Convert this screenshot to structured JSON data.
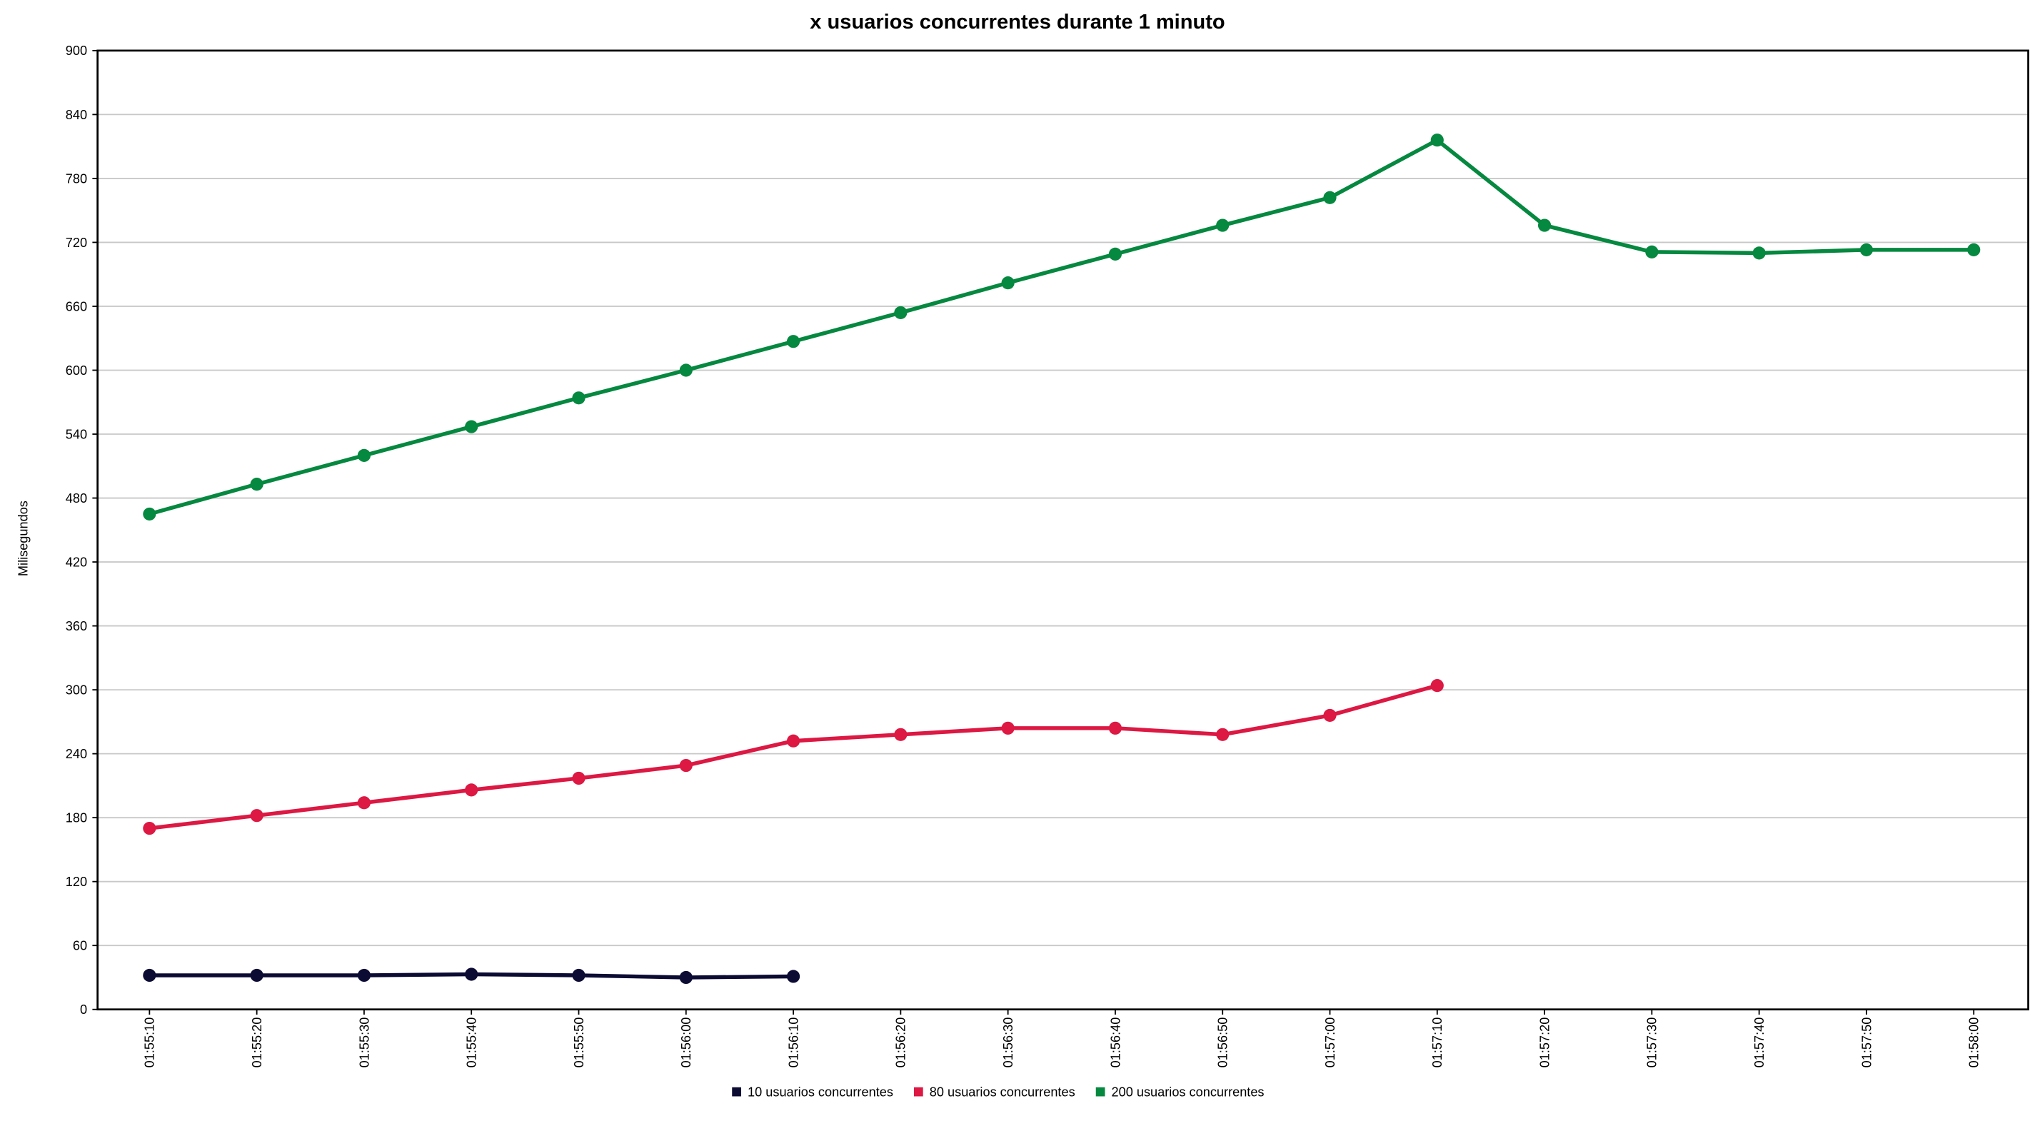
{
  "chart_data": {
    "type": "line",
    "title": "x usuarios concurrentes durante 1 minuto",
    "y_label": "Milisegundos",
    "categories": [
      "01:55:10",
      "01:55:20",
      "01:55:30",
      "01:55:40",
      "01:55:50",
      "01:56:00",
      "01:56:10",
      "01:56:20",
      "01:56:30",
      "01:56:40",
      "01:56:50",
      "01:57:00",
      "01:57:10",
      "01:57:20",
      "01:57:30",
      "01:57:40",
      "01:57:50",
      "01:58:00"
    ],
    "series": [
      {
        "name": "10 usuarios concurrentes",
        "color": "#0b0b33",
        "values": [
          32,
          32,
          32,
          33,
          32,
          30,
          31,
          null,
          null,
          null,
          null,
          null,
          null,
          null,
          null,
          null,
          null,
          null
        ]
      },
      {
        "name": "80 usuarios concurrentes",
        "color": "#dc1843",
        "values": [
          170,
          182,
          194,
          206,
          217,
          229,
          252,
          258,
          264,
          264,
          258,
          276,
          304,
          null,
          null,
          null,
          null,
          null
        ]
      },
      {
        "name": "200 usuarios concurrentes",
        "color": "#05883f",
        "values": [
          465,
          493,
          520,
          547,
          574,
          600,
          627,
          654,
          682,
          709,
          736,
          762,
          816,
          736,
          711,
          710,
          713,
          713
        ]
      }
    ],
    "ylim": [
      0,
      900
    ],
    "yticks": [
      0,
      60,
      120,
      180,
      240,
      300,
      360,
      420,
      480,
      540,
      600,
      660,
      720,
      780,
      840,
      900
    ],
    "grid": true,
    "legend": "bottom"
  }
}
